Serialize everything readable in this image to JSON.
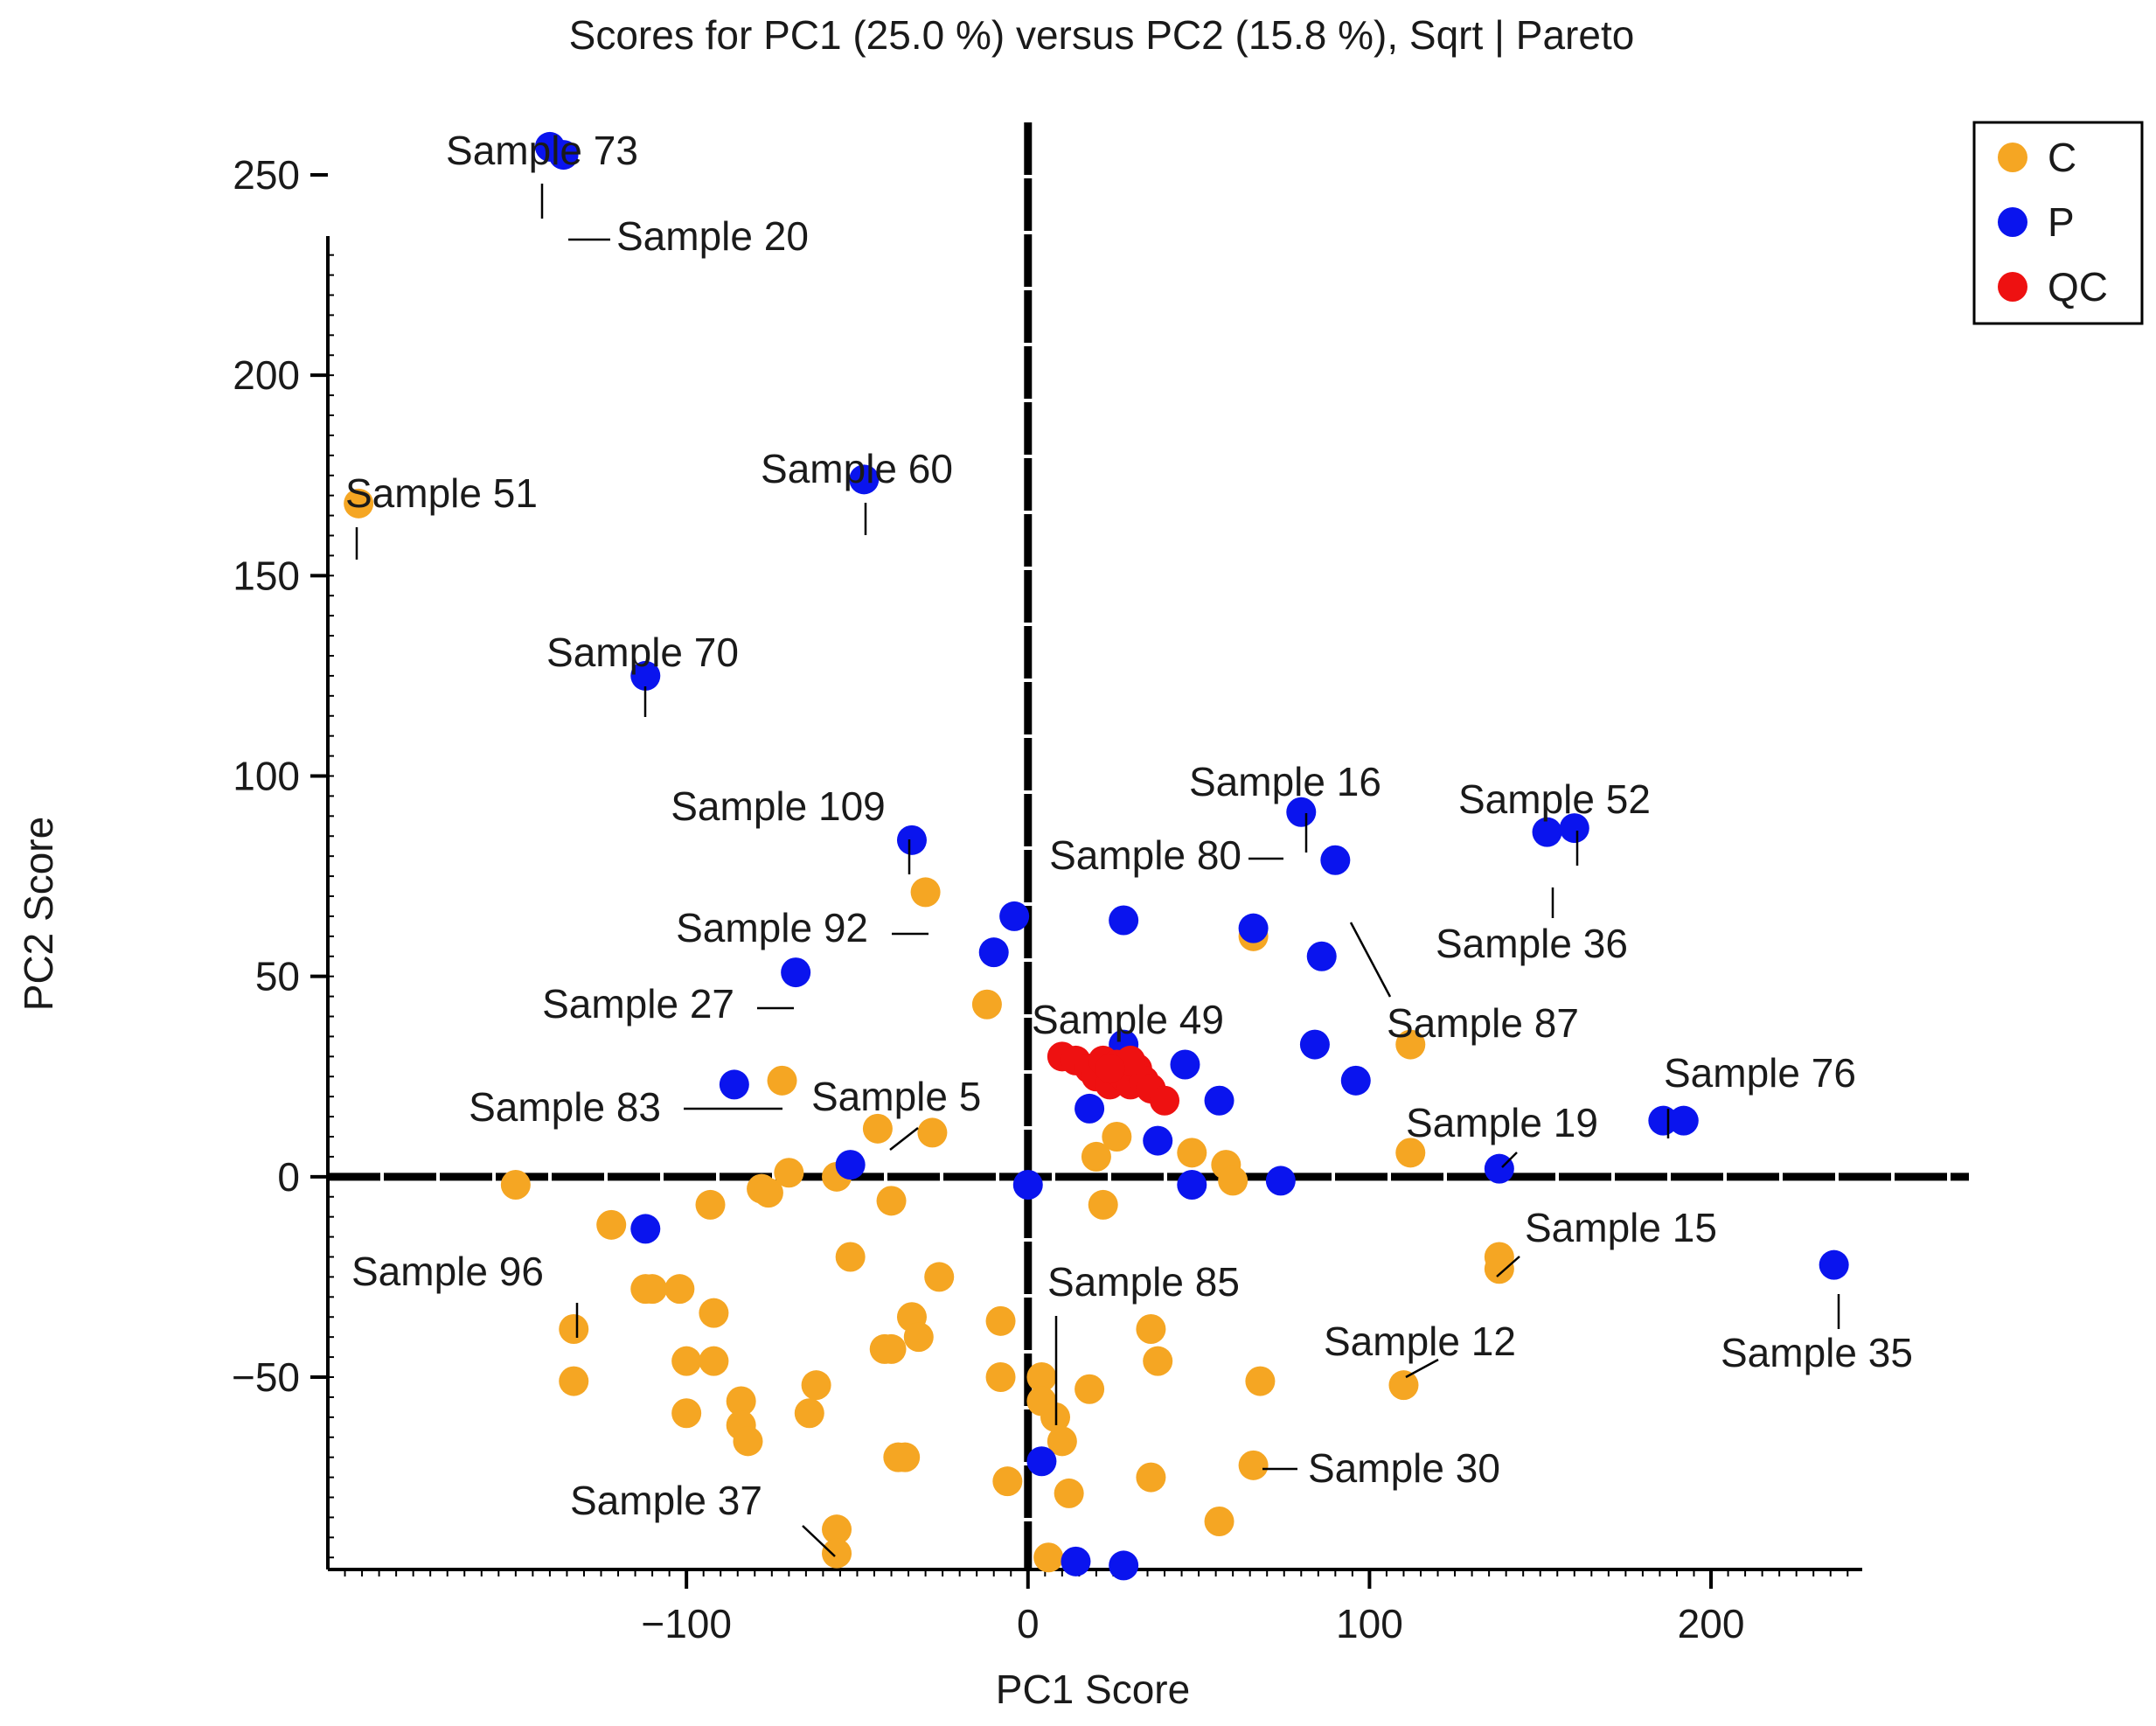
{
  "chart_data": {
    "type": "scatter",
    "title": "Scores for PC1 (25.0 %) versus PC2 (15.8 %), Sqrt | Pareto",
    "xlabel": "PC1 Score",
    "ylabel": "PC2 Score",
    "xlim": [
      -205,
      243
    ],
    "ylim": [
      -98,
      262
    ],
    "xticks": [
      -100,
      0,
      100,
      200
    ],
    "xtick_labels": [
      "−100",
      "0",
      "100",
      "200"
    ],
    "yticks": [
      -50,
      0,
      50,
      100,
      150,
      200,
      250
    ],
    "ytick_labels": [
      "−50",
      "0",
      "50",
      "100",
      "150",
      "200",
      "250"
    ],
    "legend_position": "top-right",
    "series": [
      {
        "name": "C",
        "color": "#f5a623",
        "points": [
          [
            -196,
            168
          ],
          [
            -150,
            -2
          ],
          [
            -133,
            -38
          ],
          [
            -133,
            -51
          ],
          [
            -122,
            -12
          ],
          [
            -112,
            -28
          ],
          [
            -110,
            -28
          ],
          [
            -102,
            -28
          ],
          [
            -100,
            -46
          ],
          [
            -100,
            -59
          ],
          [
            -93,
            -7
          ],
          [
            -92,
            -34
          ],
          [
            -92,
            -46
          ],
          [
            -84,
            -56
          ],
          [
            -84,
            -62
          ],
          [
            -82,
            -66
          ],
          [
            -78,
            -3
          ],
          [
            -76,
            -4
          ],
          [
            -72,
            24
          ],
          [
            -70,
            1
          ],
          [
            -64,
            -59
          ],
          [
            -62,
            -52
          ],
          [
            -56,
            0
          ],
          [
            -56,
            -88
          ],
          [
            -56,
            -94
          ],
          [
            -52,
            -20
          ],
          [
            -44,
            12
          ],
          [
            -42,
            -43
          ],
          [
            -40,
            -43
          ],
          [
            -40,
            -6
          ],
          [
            -38,
            -70
          ],
          [
            -36,
            -70
          ],
          [
            -34,
            -35
          ],
          [
            -32,
            -40
          ],
          [
            -30,
            71
          ],
          [
            -28,
            11
          ],
          [
            -26,
            -25
          ],
          [
            -12,
            43
          ],
          [
            -8,
            -36
          ],
          [
            -8,
            -50
          ],
          [
            -6,
            -76
          ],
          [
            4,
            -50
          ],
          [
            4,
            -56
          ],
          [
            6,
            -95
          ],
          [
            8,
            -60
          ],
          [
            10,
            -66
          ],
          [
            12,
            -79
          ],
          [
            18,
            -53
          ],
          [
            20,
            5
          ],
          [
            22,
            -7
          ],
          [
            26,
            10
          ],
          [
            30,
            26
          ],
          [
            36,
            -38
          ],
          [
            36,
            -75
          ],
          [
            38,
            -46
          ],
          [
            48,
            6
          ],
          [
            56,
            -86
          ],
          [
            58,
            3
          ],
          [
            60,
            -1
          ],
          [
            66,
            -72
          ],
          [
            66,
            60
          ],
          [
            68,
            -51
          ],
          [
            110,
            -52
          ],
          [
            112,
            6
          ],
          [
            112,
            33
          ],
          [
            138,
            -20
          ],
          [
            138,
            -23
          ]
        ]
      },
      {
        "name": "P",
        "color": "#0a14ee",
        "points": [
          [
            -140,
            257
          ],
          [
            -136,
            255
          ],
          [
            -112,
            -13
          ],
          [
            -112,
            125
          ],
          [
            -86,
            23
          ],
          [
            -68,
            51
          ],
          [
            -52,
            3
          ],
          [
            -48,
            174
          ],
          [
            -34,
            84
          ],
          [
            -10,
            56
          ],
          [
            -4,
            65
          ],
          [
            0,
            -2
          ],
          [
            4,
            -71
          ],
          [
            14,
            -96
          ],
          [
            18,
            17
          ],
          [
            28,
            -97
          ],
          [
            28,
            33
          ],
          [
            28,
            64
          ],
          [
            38,
            9
          ],
          [
            46,
            28
          ],
          [
            48,
            -2
          ],
          [
            56,
            19
          ],
          [
            66,
            62
          ],
          [
            74,
            -1
          ],
          [
            80,
            91
          ],
          [
            84,
            33
          ],
          [
            86,
            55
          ],
          [
            90,
            79
          ],
          [
            96,
            24
          ],
          [
            138,
            2
          ],
          [
            152,
            86
          ],
          [
            160,
            87
          ],
          [
            186,
            14
          ],
          [
            192,
            14
          ],
          [
            236,
            -22
          ]
        ]
      },
      {
        "name": "QC",
        "color": "#ee1111",
        "points": [
          [
            10,
            30
          ],
          [
            14,
            29
          ],
          [
            18,
            27
          ],
          [
            20,
            25
          ],
          [
            22,
            29
          ],
          [
            24,
            23
          ],
          [
            26,
            28
          ],
          [
            28,
            25
          ],
          [
            30,
            23
          ],
          [
            32,
            27
          ],
          [
            34,
            24
          ],
          [
            36,
            22
          ],
          [
            30,
            29
          ],
          [
            24,
            27
          ],
          [
            40,
            19
          ]
        ]
      }
    ],
    "annotations": [
      {
        "text": "Sample 73",
        "x": -140,
        "y": 257
      },
      {
        "text": "Sample 20",
        "x": -136,
        "y": 255
      },
      {
        "text": "Sample 51",
        "x": -196,
        "y": 168
      },
      {
        "text": "Sample 60",
        "x": -48,
        "y": 174
      },
      {
        "text": "Sample 70",
        "x": -112,
        "y": 125
      },
      {
        "text": "Sample 109",
        "x": -34,
        "y": 84
      },
      {
        "text": "Sample 92",
        "x": -30,
        "y": 71
      },
      {
        "text": "Sample 27",
        "x": -68,
        "y": 51
      },
      {
        "text": "Sample 83",
        "x": -86,
        "y": 23
      },
      {
        "text": "Sample 5",
        "x": -44,
        "y": 12
      },
      {
        "text": "Sample 16",
        "x": 80,
        "y": 91
      },
      {
        "text": "Sample 80",
        "x": 80,
        "y": 91
      },
      {
        "text": "Sample 52",
        "x": 160,
        "y": 87
      },
      {
        "text": "Sample 36",
        "x": 152,
        "y": 86
      },
      {
        "text": "Sample 87",
        "x": 90,
        "y": 79
      },
      {
        "text": "Sample 49",
        "x": 26,
        "y": 28
      },
      {
        "text": "Sample 76",
        "x": 186,
        "y": 14
      },
      {
        "text": "Sample 19",
        "x": 138,
        "y": 2
      },
      {
        "text": "Sample 15",
        "x": 138,
        "y": -22
      },
      {
        "text": "Sample 35",
        "x": 236,
        "y": -22
      },
      {
        "text": "Sample 96",
        "x": -133,
        "y": -38
      },
      {
        "text": "Sample 85",
        "x": 8,
        "y": -60
      },
      {
        "text": "Sample 12",
        "x": 110,
        "y": -52
      },
      {
        "text": "Sample 30",
        "x": 66,
        "y": -72
      },
      {
        "text": "Sample 37",
        "x": -56,
        "y": -94
      }
    ]
  }
}
